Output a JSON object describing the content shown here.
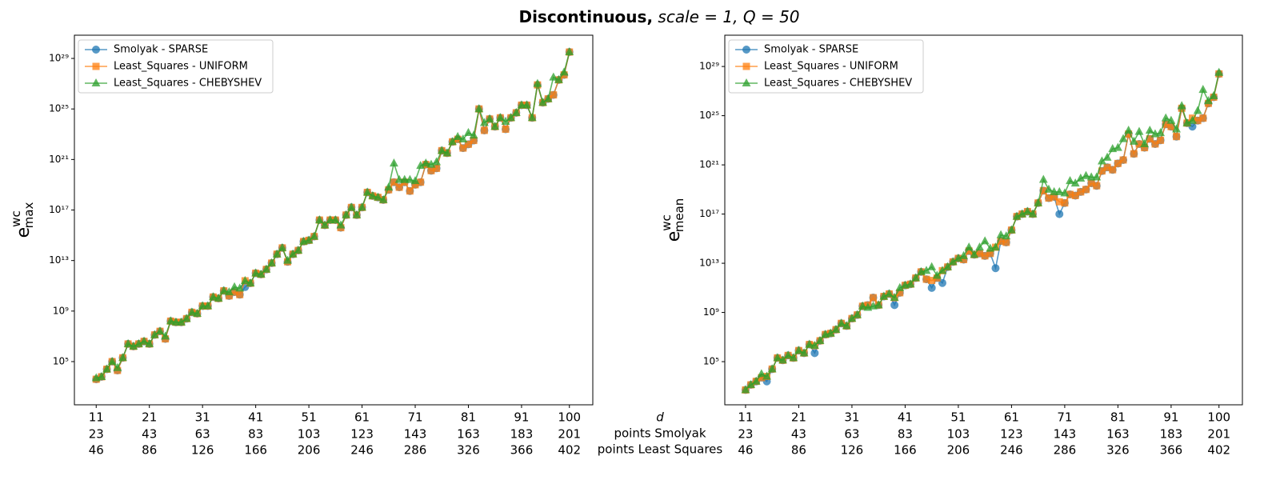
{
  "title": [
    "Discontinuous,",
    "scale = 1, Q = 50"
  ],
  "chart_data": [
    {
      "type": "line",
      "log_y": true,
      "legend": "upper left",
      "ylabel": {
        "base": "e",
        "sup": "wc",
        "sub": "max"
      },
      "xlim": [
        6.9,
        104.4
      ],
      "ylim": [
        38,
        6.9e+30
      ],
      "xticks": [
        11,
        21,
        31,
        41,
        51,
        61,
        71,
        81,
        91,
        100
      ],
      "xtick_rows": [
        [
          23,
          43,
          63,
          83,
          103,
          123,
          143,
          163,
          183,
          201
        ],
        [
          46,
          86,
          126,
          166,
          206,
          246,
          286,
          326,
          366,
          402
        ]
      ],
      "yticks": [
        {
          "value": 100000.0,
          "label": "10⁵"
        },
        {
          "value": 1000000000.0,
          "label": "10⁹"
        },
        {
          "value": 10000000000000.0,
          "label": "10¹³"
        },
        {
          "value": 1e+17,
          "label": "10¹⁷"
        },
        {
          "value": 1e+21,
          "label": "10²¹"
        },
        {
          "value": 1e+25,
          "label": "10²⁵"
        },
        {
          "value": 1e+29,
          "label": "10²⁹"
        }
      ],
      "x": [
        11,
        12,
        13,
        14,
        15,
        16,
        17,
        18,
        19,
        20,
        21,
        22,
        23,
        24,
        25,
        26,
        27,
        28,
        29,
        30,
        31,
        32,
        33,
        34,
        35,
        36,
        37,
        38,
        39,
        40,
        41,
        42,
        43,
        44,
        45,
        46,
        47,
        48,
        49,
        50,
        51,
        52,
        53,
        54,
        55,
        56,
        57,
        58,
        59,
        60,
        61,
        62,
        63,
        64,
        65,
        66,
        67,
        68,
        69,
        70,
        71,
        72,
        73,
        74,
        75,
        76,
        77,
        78,
        79,
        80,
        81,
        82,
        83,
        84,
        85,
        86,
        87,
        88,
        89,
        90,
        91,
        92,
        93,
        94,
        95,
        96,
        97,
        98,
        99,
        100
      ],
      "series": [
        {
          "name": "Smolyak - SPARSE",
          "color": "#1f77b4",
          "marker": "o",
          "values": [
            4000.0,
            6300.0,
            25000.0,
            100000.0,
            20000.0,
            200000.0,
            2500000.0,
            1600000.0,
            2500000.0,
            4000000.0,
            2500000.0,
            13000000.0,
            25000000.0,
            6300000.0,
            160000000.0,
            130000000.0,
            130000000.0,
            250000000.0,
            800000000.0,
            630000000.0,
            2500000000.0,
            2500000000.0,
            13000000000.0,
            10000000000.0,
            40000000000.0,
            16000000000.0,
            32000000000.0,
            20000000000.0,
            80000000000.0,
            160000000000.0,
            1000000000000.0,
            800000000000.0,
            2000000000000.0,
            6300000000000.0,
            32000000000000.0,
            100000000000000.0,
            8000000000000.0,
            32000000000000.0,
            63000000000000.0,
            320000000000000.0,
            400000000000000.0,
            800000000000000.0,
            1.6e+16,
            6300000000000000.0,
            1.6e+16,
            1.6e+16,
            4000000000000000.0,
            4e+16,
            1.6e+17,
            4e+16,
            1.6e+17,
            2.5e+18,
            1.3e+18,
            1e+18,
            6.3e+17,
            4e+18,
            1.6e+19,
            6.3e+18,
            1.6e+19,
            3.2e+18,
            1e+19,
            1.6e+19,
            4e+20,
            1.3e+20,
            2e+20,
            5e+21,
            3.2e+21,
            2.5e+22,
            4e+22,
            8e+21,
            1.6e+22,
            3.2e+22,
            1e+25,
            2e+23,
            1.6e+24,
            4e+23,
            2e+24,
            2.5e+23,
            2e+24,
            5e+24,
            2e+25,
            2e+25,
            2e+24,
            8e+26,
            3.2e+25,
            6.3e+25,
            1.3e+26,
            2e+27,
            5e+27,
            3.2e+29
          ]
        },
        {
          "name": "Least_Squares - UNIFORM",
          "color": "#ff7f0e",
          "marker": "s",
          "values": [
            4000.0,
            6300.0,
            25000.0,
            100000.0,
            20000.0,
            200000.0,
            2500000.0,
            1600000.0,
            2500000.0,
            4000000.0,
            2500000.0,
            13000000.0,
            25000000.0,
            6300000.0,
            160000000.0,
            130000000.0,
            130000000.0,
            250000000.0,
            800000000.0,
            630000000.0,
            2500000000.0,
            2500000000.0,
            13000000000.0,
            10000000000.0,
            40000000000.0,
            16000000000.0,
            32000000000.0,
            20000000000.0,
            250000000000.0,
            160000000000.0,
            1000000000000.0,
            800000000000.0,
            2000000000000.0,
            6300000000000.0,
            32000000000000.0,
            100000000000000.0,
            8000000000000.0,
            32000000000000.0,
            63000000000000.0,
            320000000000000.0,
            400000000000000.0,
            800000000000000.0,
            1.6e+16,
            6300000000000000.0,
            1.6e+16,
            1.6e+16,
            4000000000000000.0,
            4e+16,
            1.6e+17,
            4e+16,
            1.6e+17,
            2.5e+18,
            1.3e+18,
            1e+18,
            6.3e+17,
            4e+18,
            1.6e+19,
            6.3e+18,
            1.6e+19,
            3.2e+18,
            1e+19,
            1.6e+19,
            4e+20,
            1.3e+20,
            2e+20,
            5e+21,
            3.2e+21,
            2.5e+22,
            4e+22,
            8e+21,
            1.6e+22,
            3.2e+22,
            1e+25,
            2e+23,
            1.6e+24,
            4e+23,
            2e+24,
            2.5e+23,
            2e+24,
            5e+24,
            2e+25,
            2e+25,
            2e+24,
            8e+26,
            3.2e+25,
            6.3e+25,
            1.3e+26,
            2e+27,
            5e+27,
            3.2e+29
          ]
        },
        {
          "name": "Least_Squares - CHEBYSHEV",
          "color": "#2ca02c",
          "marker": "^",
          "values": [
            5000.0,
            6300.0,
            25000.0,
            100000.0,
            32000.0,
            200000.0,
            2500000.0,
            1600000.0,
            2500000.0,
            4000000.0,
            2500000.0,
            13000000.0,
            25000000.0,
            10000000.0,
            160000000.0,
            130000000.0,
            130000000.0,
            250000000.0,
            800000000.0,
            630000000.0,
            2500000000.0,
            2500000000.0,
            13000000000.0,
            10000000000.0,
            40000000000.0,
            32000000000.0,
            80000000000.0,
            63000000000.0,
            250000000000.0,
            160000000000.0,
            1000000000000.0,
            800000000000.0,
            2000000000000.0,
            6300000000000.0,
            32000000000000.0,
            100000000000000.0,
            10000000000000.0,
            32000000000000.0,
            63000000000000.0,
            320000000000000.0,
            400000000000000.0,
            800000000000000.0,
            1.6e+16,
            6300000000000000.0,
            1.6e+16,
            1.6e+16,
            6300000000000000.0,
            4e+16,
            1.6e+17,
            4e+16,
            1.6e+17,
            2.5e+18,
            1.3e+18,
            1e+18,
            6.3e+17,
            6.3e+18,
            5e+20,
            2.5e+19,
            2.5e+19,
            2.5e+19,
            2e+19,
            3.2e+20,
            5e+20,
            4e+20,
            6.3e+20,
            5e+21,
            3.2e+21,
            2.5e+22,
            6.3e+22,
            4e+22,
            1.3e+23,
            8e+22,
            1e+25,
            8e+23,
            1.6e+24,
            4e+23,
            2e+24,
            1e+24,
            2e+24,
            5e+24,
            2e+25,
            2e+25,
            2e+24,
            1e+27,
            3.2e+25,
            6.3e+25,
            3.2e+27,
            2e+27,
            8e+27,
            3.2e+29
          ]
        }
      ]
    },
    {
      "type": "line",
      "log_y": true,
      "legend": "upper left",
      "ylabel": {
        "base": "e",
        "sup": "wc",
        "sub": "mean"
      },
      "xlim": [
        7.1,
        104.4
      ],
      "ylim": [
        31,
        3.5e+31
      ],
      "xticks": [
        11,
        21,
        31,
        41,
        51,
        61,
        71,
        81,
        91,
        100
      ],
      "xtick_row_names": [
        "d",
        "points Smolyak",
        "points Least Squares"
      ],
      "xtick_rows": [
        [
          23,
          43,
          63,
          83,
          103,
          123,
          143,
          163,
          183,
          201
        ],
        [
          46,
          86,
          126,
          166,
          206,
          246,
          286,
          326,
          366,
          402
        ]
      ],
      "yticks": [
        {
          "value": 100000.0,
          "label": "10⁵"
        },
        {
          "value": 1000000000.0,
          "label": "10⁹"
        },
        {
          "value": 10000000000000.0,
          "label": "10¹³"
        },
        {
          "value": 1e+17,
          "label": "10¹⁷"
        },
        {
          "value": 1e+21,
          "label": "10²¹"
        },
        {
          "value": 1e+25,
          "label": "10²⁵"
        },
        {
          "value": 1e+29,
          "label": "10²⁹"
        }
      ],
      "x": [
        11,
        12,
        13,
        14,
        15,
        16,
        17,
        18,
        19,
        20,
        21,
        22,
        23,
        24,
        25,
        26,
        27,
        28,
        29,
        30,
        31,
        32,
        33,
        34,
        35,
        36,
        37,
        38,
        39,
        40,
        41,
        42,
        43,
        44,
        45,
        46,
        47,
        48,
        49,
        50,
        51,
        52,
        53,
        54,
        55,
        56,
        57,
        58,
        59,
        60,
        61,
        62,
        63,
        64,
        65,
        66,
        67,
        68,
        69,
        70,
        71,
        72,
        73,
        74,
        75,
        76,
        77,
        78,
        79,
        80,
        81,
        82,
        83,
        84,
        85,
        86,
        87,
        88,
        89,
        90,
        91,
        92,
        93,
        94,
        95,
        96,
        97,
        98,
        99,
        100
      ],
      "series": [
        {
          "name": "Smolyak - SPARSE",
          "color": "#1f77b4",
          "marker": "o",
          "values": [
            500.0,
            1300.0,
            2500.0,
            5000.0,
            2500.0,
            25000.0,
            200000.0,
            130000.0,
            320000.0,
            200000.0,
            800000.0,
            500000.0,
            2500000.0,
            500000.0,
            5000000.0,
            16000000.0,
            20000000.0,
            40000000.0,
            130000000.0,
            80000000.0,
            320000000.0,
            630000000.0,
            3200000000.0,
            4000000000.0,
            16000000000.0,
            4000000000.0,
            20000000000.0,
            32000000000.0,
            4000000000.0,
            40000000000.0,
            160000000000.0,
            200000000000.0,
            630000000000.0,
            2000000000000.0,
            500000000000.0,
            100000000000.0,
            630000000000.0,
            250000000000.0,
            5000000000000.0,
            13000000000000.0,
            25000000000000.0,
            20000000000000.0,
            100000000000000.0,
            50000000000000.0,
            63000000000000.0,
            40000000000000.0,
            63000000000000.0,
            4000000000000.0,
            630000000000000.0,
            500000000000000.0,
            5000000000000000.0,
            6.3e+16,
            1e+17,
            1.6e+17,
            1e+17,
            8e+17,
            8e+18,
            2e+18,
            2.5e+18,
            1e+17,
            8e+17,
            4e+18,
            3.2e+18,
            6.3e+18,
            1e+19,
            3.2e+19,
            2e+19,
            3.2e+20,
            6.3e+20,
            4e+20,
            1.3e+21,
            2.5e+21,
            3.2e+23,
            8e+21,
            5e+22,
            2.5e+22,
            1.3e+23,
            5e+22,
            1e+23,
            2e+24,
            1.3e+24,
            2e+23,
            4e+25,
            2.5e+24,
            1.3e+24,
            4e+24,
            6.3e+24,
            1e+26,
            3.2e+26,
            2.5e+28
          ]
        },
        {
          "name": "Least_Squares - UNIFORM",
          "color": "#ff7f0e",
          "marker": "s",
          "values": [
            500.0,
            1300.0,
            2500.0,
            5000.0,
            6300.0,
            25000.0,
            200000.0,
            130000.0,
            320000.0,
            200000.0,
            800000.0,
            500000.0,
            2500000.0,
            2000000.0,
            5000000.0,
            16000000.0,
            20000000.0,
            40000000.0,
            130000000.0,
            80000000.0,
            320000000.0,
            630000000.0,
            3200000000.0,
            4000000000.0,
            16000000000.0,
            4000000000.0,
            20000000000.0,
            32000000000.0,
            16000000000.0,
            40000000000.0,
            160000000000.0,
            200000000000.0,
            630000000000.0,
            2000000000000.0,
            500000000000.0,
            400000000000.0,
            630000000000.0,
            2500000000000.0,
            5000000000000.0,
            13000000000000.0,
            25000000000000.0,
            20000000000000.0,
            100000000000000.0,
            50000000000000.0,
            63000000000000.0,
            40000000000000.0,
            63000000000000.0,
            200000000000000.0,
            630000000000000.0,
            500000000000000.0,
            5000000000000000.0,
            6.3e+16,
            1e+17,
            1.6e+17,
            1e+17,
            8e+17,
            8e+18,
            2e+18,
            2.5e+18,
            1e+18,
            8e+17,
            4e+18,
            3.2e+18,
            6.3e+18,
            1e+19,
            3.2e+19,
            2e+19,
            3.2e+20,
            6.3e+20,
            4e+20,
            1.3e+21,
            2.5e+21,
            3.2e+23,
            8e+21,
            5e+22,
            2.5e+22,
            1.3e+23,
            5e+22,
            1e+23,
            2e+24,
            1.3e+24,
            2e+23,
            4e+25,
            2.5e+24,
            6.3e+24,
            4e+24,
            6.3e+24,
            1e+26,
            3.2e+26,
            2.5e+28
          ]
        },
        {
          "name": "Least_Squares - CHEBYSHEV",
          "color": "#2ca02c",
          "marker": "^",
          "values": [
            500.0,
            1300.0,
            2500.0,
            10000.0,
            6300.0,
            25000.0,
            200000.0,
            130000.0,
            320000.0,
            200000.0,
            800000.0,
            500000.0,
            2500000.0,
            2000000.0,
            5000000.0,
            16000000.0,
            20000000.0,
            40000000.0,
            130000000.0,
            80000000.0,
            320000000.0,
            630000000.0,
            3200000000.0,
            2500000000.0,
            3200000000.0,
            4000000000.0,
            20000000000.0,
            32000000000.0,
            16000000000.0,
            100000000000.0,
            160000000000.0,
            200000000000.0,
            630000000000.0,
            2000000000000.0,
            2500000000000.0,
            5000000000000.0,
            1000000000000.0,
            2500000000000.0,
            5000000000000.0,
            13000000000000.0,
            25000000000000.0,
            40000000000000.0,
            200000000000000.0,
            50000000000000.0,
            200000000000000.0,
            630000000000000.0,
            160000000000000.0,
            200000000000000.0,
            2000000000000000.0,
            1600000000000000.0,
            5000000000000000.0,
            6.3e+16,
            1e+17,
            1.6e+17,
            1e+17,
            8e+17,
            6.3e+19,
            1e+19,
            6.3e+18,
            6.3e+18,
            5e+18,
            5e+19,
            3.2e+19,
            8e+19,
            1.3e+20,
            1e+20,
            1e+20,
            2e+21,
            4e+21,
            2e+22,
            2.5e+22,
            1.3e+23,
            6.3e+23,
            8e+22,
            5e+23,
            5e+22,
            6.3e+23,
            3.2e+23,
            4e+23,
            6.3e+24,
            4e+24,
            8e+23,
            6.3e+25,
            2.5e+24,
            4e+24,
            2.5e+25,
            1.3e+27,
            1.6e+26,
            4e+26,
            3.2e+28
          ]
        }
      ]
    }
  ]
}
